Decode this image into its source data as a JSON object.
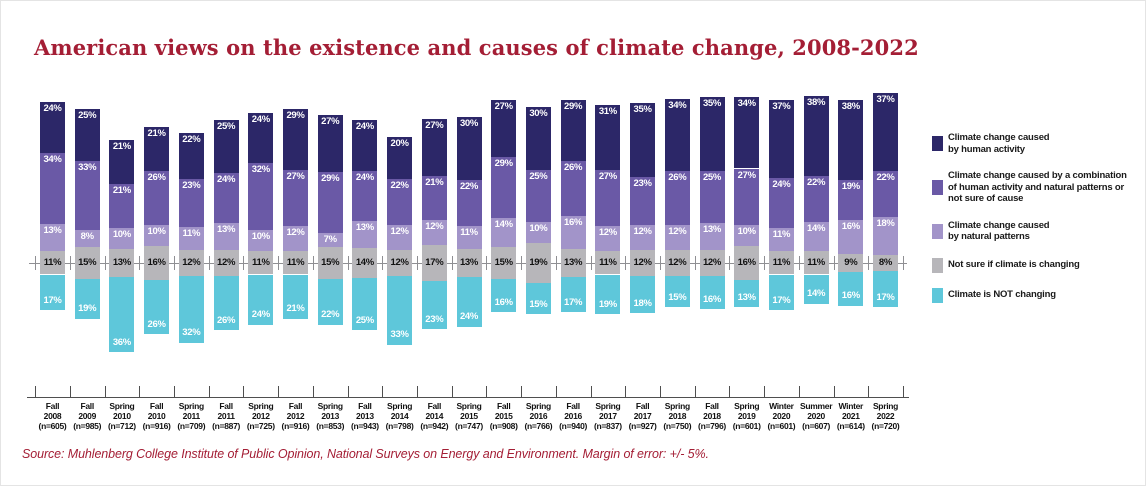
{
  "title": "American views on the existence and causes of climate change, 2008-2022",
  "source_note": "Source: Muhlenberg College Institute of Public Opinion, National Surveys on Energy and Environment. Margin of error: +/- 5%.",
  "colors": {
    "human": "#2c2768",
    "combo": "#6a59a6",
    "natural": "#a294c9",
    "notsure": "#b7b6ba",
    "notchanging": "#5ec7da",
    "title": "#a41e35",
    "zero_axis": "#8f8f93",
    "bottom_axis": "#4f4f4f",
    "gray_label_text": "#111111",
    "segment_label_text": "#ffffff"
  },
  "legend": {
    "items": [
      {
        "key": "human",
        "lines": [
          "Climate change caused",
          "by human activity"
        ]
      },
      {
        "key": "combo",
        "lines": [
          "Climate change caused by a combination",
          "of human activity and natural patterns or",
          "not sure of cause"
        ]
      },
      {
        "key": "natural",
        "lines": [
          "Climate change caused",
          "by natural patterns"
        ]
      },
      {
        "key": "notsure",
        "lines": [
          "Not sure if climate is changing"
        ]
      },
      {
        "key": "notchanging",
        "lines": [
          "Climate is NOT changing"
        ]
      }
    ]
  },
  "chart_data": {
    "type": "bar",
    "variant": "diverging-stacked",
    "unit": "%",
    "stack_order_top_to_bottom": [
      "human",
      "combo",
      "natural",
      "notsure",
      "notchanging"
    ],
    "baseline": "zero line passes through the middle of the 'notsure' segment; 'notchanging' hangs below",
    "legend_position": "right",
    "categories": [
      {
        "season": "Fall",
        "year": "2008",
        "n": "(n=605)"
      },
      {
        "season": "Fall",
        "year": "2009",
        "n": "(n=985)"
      },
      {
        "season": "Spring",
        "year": "2010",
        "n": "(n=712)"
      },
      {
        "season": "Fall",
        "year": "2010",
        "n": "(n=916)"
      },
      {
        "season": "Spring",
        "year": "2011",
        "n": "(n=709)"
      },
      {
        "season": "Fall",
        "year": "2011",
        "n": "(n=887)"
      },
      {
        "season": "Spring",
        "year": "2012",
        "n": "(n=725)"
      },
      {
        "season": "Fall",
        "year": "2012",
        "n": "(n=916)"
      },
      {
        "season": "Spring",
        "year": "2013",
        "n": "(n=853)"
      },
      {
        "season": "Fall",
        "year": "2013",
        "n": "(n=943)"
      },
      {
        "season": "Spring",
        "year": "2014",
        "n": "(n=798)"
      },
      {
        "season": "Fall",
        "year": "2014",
        "n": "(n=942)"
      },
      {
        "season": "Spring",
        "year": "2015",
        "n": "(n=747)"
      },
      {
        "season": "Fall",
        "year": "2015",
        "n": "(n=908)"
      },
      {
        "season": "Spring",
        "year": "2016",
        "n": "(n=766)"
      },
      {
        "season": "Fall",
        "year": "2016",
        "n": "(n=940)"
      },
      {
        "season": "Spring",
        "year": "2017",
        "n": "(n=837)"
      },
      {
        "season": "Fall",
        "year": "2017",
        "n": "(n=927)"
      },
      {
        "season": "Spring",
        "year": "2018",
        "n": "(n=750)"
      },
      {
        "season": "Fall",
        "year": "2018",
        "n": "(n=796)"
      },
      {
        "season": "Spring",
        "year": "2019",
        "n": "(n=601)"
      },
      {
        "season": "Winter",
        "year": "2020",
        "n": "(n=601)"
      },
      {
        "season": "Summer",
        "year": "2020",
        "n": "(n=607)"
      },
      {
        "season": "Winter",
        "year": "2021",
        "n": "(n=614)"
      },
      {
        "season": "Spring",
        "year": "2022",
        "n": "(n=720)"
      }
    ],
    "series": [
      {
        "key": "human",
        "name": "Climate change caused by human activity",
        "values": [
          24,
          25,
          21,
          21,
          22,
          25,
          24,
          29,
          27,
          24,
          20,
          27,
          30,
          27,
          30,
          29,
          31,
          35,
          34,
          35,
          34,
          37,
          38,
          38,
          37
        ]
      },
      {
        "key": "combo",
        "name": "Climate change caused by a combination of human activity and natural patterns or not sure of cause",
        "values": [
          34,
          33,
          21,
          26,
          23,
          24,
          32,
          27,
          29,
          24,
          22,
          21,
          22,
          29,
          25,
          26,
          27,
          23,
          26,
          25,
          27,
          24,
          22,
          19,
          22
        ]
      },
      {
        "key": "natural",
        "name": "Climate change caused by natural patterns",
        "values": [
          13,
          8,
          10,
          10,
          11,
          13,
          10,
          12,
          7,
          13,
          12,
          12,
          11,
          14,
          10,
          16,
          12,
          12,
          12,
          13,
          10,
          11,
          14,
          16,
          18
        ]
      },
      {
        "key": "notsure",
        "name": "Not sure if climate is changing",
        "values": [
          11,
          15,
          13,
          16,
          12,
          12,
          11,
          11,
          15,
          14,
          12,
          17,
          13,
          15,
          19,
          13,
          11,
          12,
          12,
          12,
          16,
          11,
          11,
          9,
          8
        ]
      },
      {
        "key": "notchanging",
        "name": "Climate is NOT changing",
        "values": [
          17,
          19,
          36,
          26,
          32,
          26,
          24,
          21,
          22,
          25,
          33,
          23,
          24,
          16,
          15,
          17,
          19,
          18,
          15,
          16,
          13,
          17,
          14,
          16,
          17
        ]
      }
    ]
  }
}
